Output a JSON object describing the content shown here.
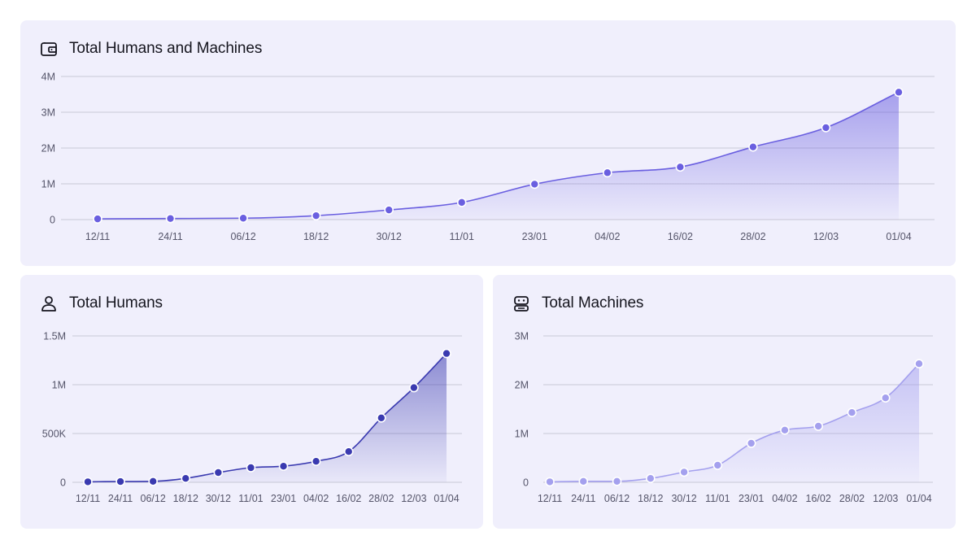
{
  "cards": {
    "total": {
      "title": "Total Humans and Machines",
      "icon": "wallet-icon"
    },
    "humans": {
      "title": "Total Humans",
      "icon": "person-icon"
    },
    "machines": {
      "title": "Total Machines",
      "icon": "robot-icon"
    }
  },
  "colors": {
    "background": "#ffffff",
    "card": "#f0effc",
    "grid": "#c9c8d6",
    "total_series": "#6a5fe0",
    "humans_series": "#3a3ab0",
    "machines_series": "#a4a0ee"
  },
  "chart_data": [
    {
      "type": "area",
      "title": "Total Humans and Machines",
      "xlabel": "",
      "ylabel": "",
      "categories": [
        "12/11",
        "24/11",
        "06/12",
        "18/12",
        "30/12",
        "11/01",
        "23/01",
        "04/02",
        "16/02",
        "28/02",
        "12/03",
        "01/04"
      ],
      "ylim": [
        0,
        4000000
      ],
      "yticks": [
        0,
        1000000,
        2000000,
        3000000,
        4000000
      ],
      "ytick_labels": [
        "0",
        "1M",
        "2M",
        "3M",
        "4M"
      ],
      "series": [
        {
          "values": [
            20000,
            30000,
            40000,
            110000,
            270000,
            480000,
            990000,
            1310000,
            1470000,
            2030000,
            2570000,
            3560000
          ]
        }
      ],
      "grid": true
    },
    {
      "type": "area",
      "title": "Total Humans",
      "xlabel": "",
      "ylabel": "",
      "categories": [
        "12/11",
        "24/11",
        "06/12",
        "18/12",
        "30/12",
        "11/01",
        "23/01",
        "04/02",
        "16/02",
        "28/02",
        "12/03",
        "01/04"
      ],
      "ylim": [
        0,
        1500000
      ],
      "yticks": [
        0,
        500000,
        1000000,
        1500000
      ],
      "ytick_labels": [
        "0",
        "500K",
        "1M",
        "1.5M"
      ],
      "series": [
        {
          "values": [
            5000,
            8000,
            10000,
            40000,
            100000,
            150000,
            165000,
            215000,
            315000,
            660000,
            970000,
            1320000
          ]
        }
      ],
      "grid": true
    },
    {
      "type": "area",
      "title": "Total Machines",
      "xlabel": "",
      "ylabel": "",
      "categories": [
        "12/11",
        "24/11",
        "06/12",
        "18/12",
        "30/12",
        "11/01",
        "23/01",
        "04/02",
        "16/02",
        "28/02",
        "12/03",
        "01/04"
      ],
      "ylim": [
        0,
        3000000
      ],
      "yticks": [
        0,
        1000000,
        2000000,
        3000000
      ],
      "ytick_labels": [
        "0",
        "1M",
        "2M",
        "3M"
      ],
      "series": [
        {
          "values": [
            10000,
            20000,
            20000,
            80000,
            210000,
            350000,
            800000,
            1070000,
            1150000,
            1430000,
            1730000,
            2430000
          ]
        }
      ],
      "grid": true
    }
  ]
}
